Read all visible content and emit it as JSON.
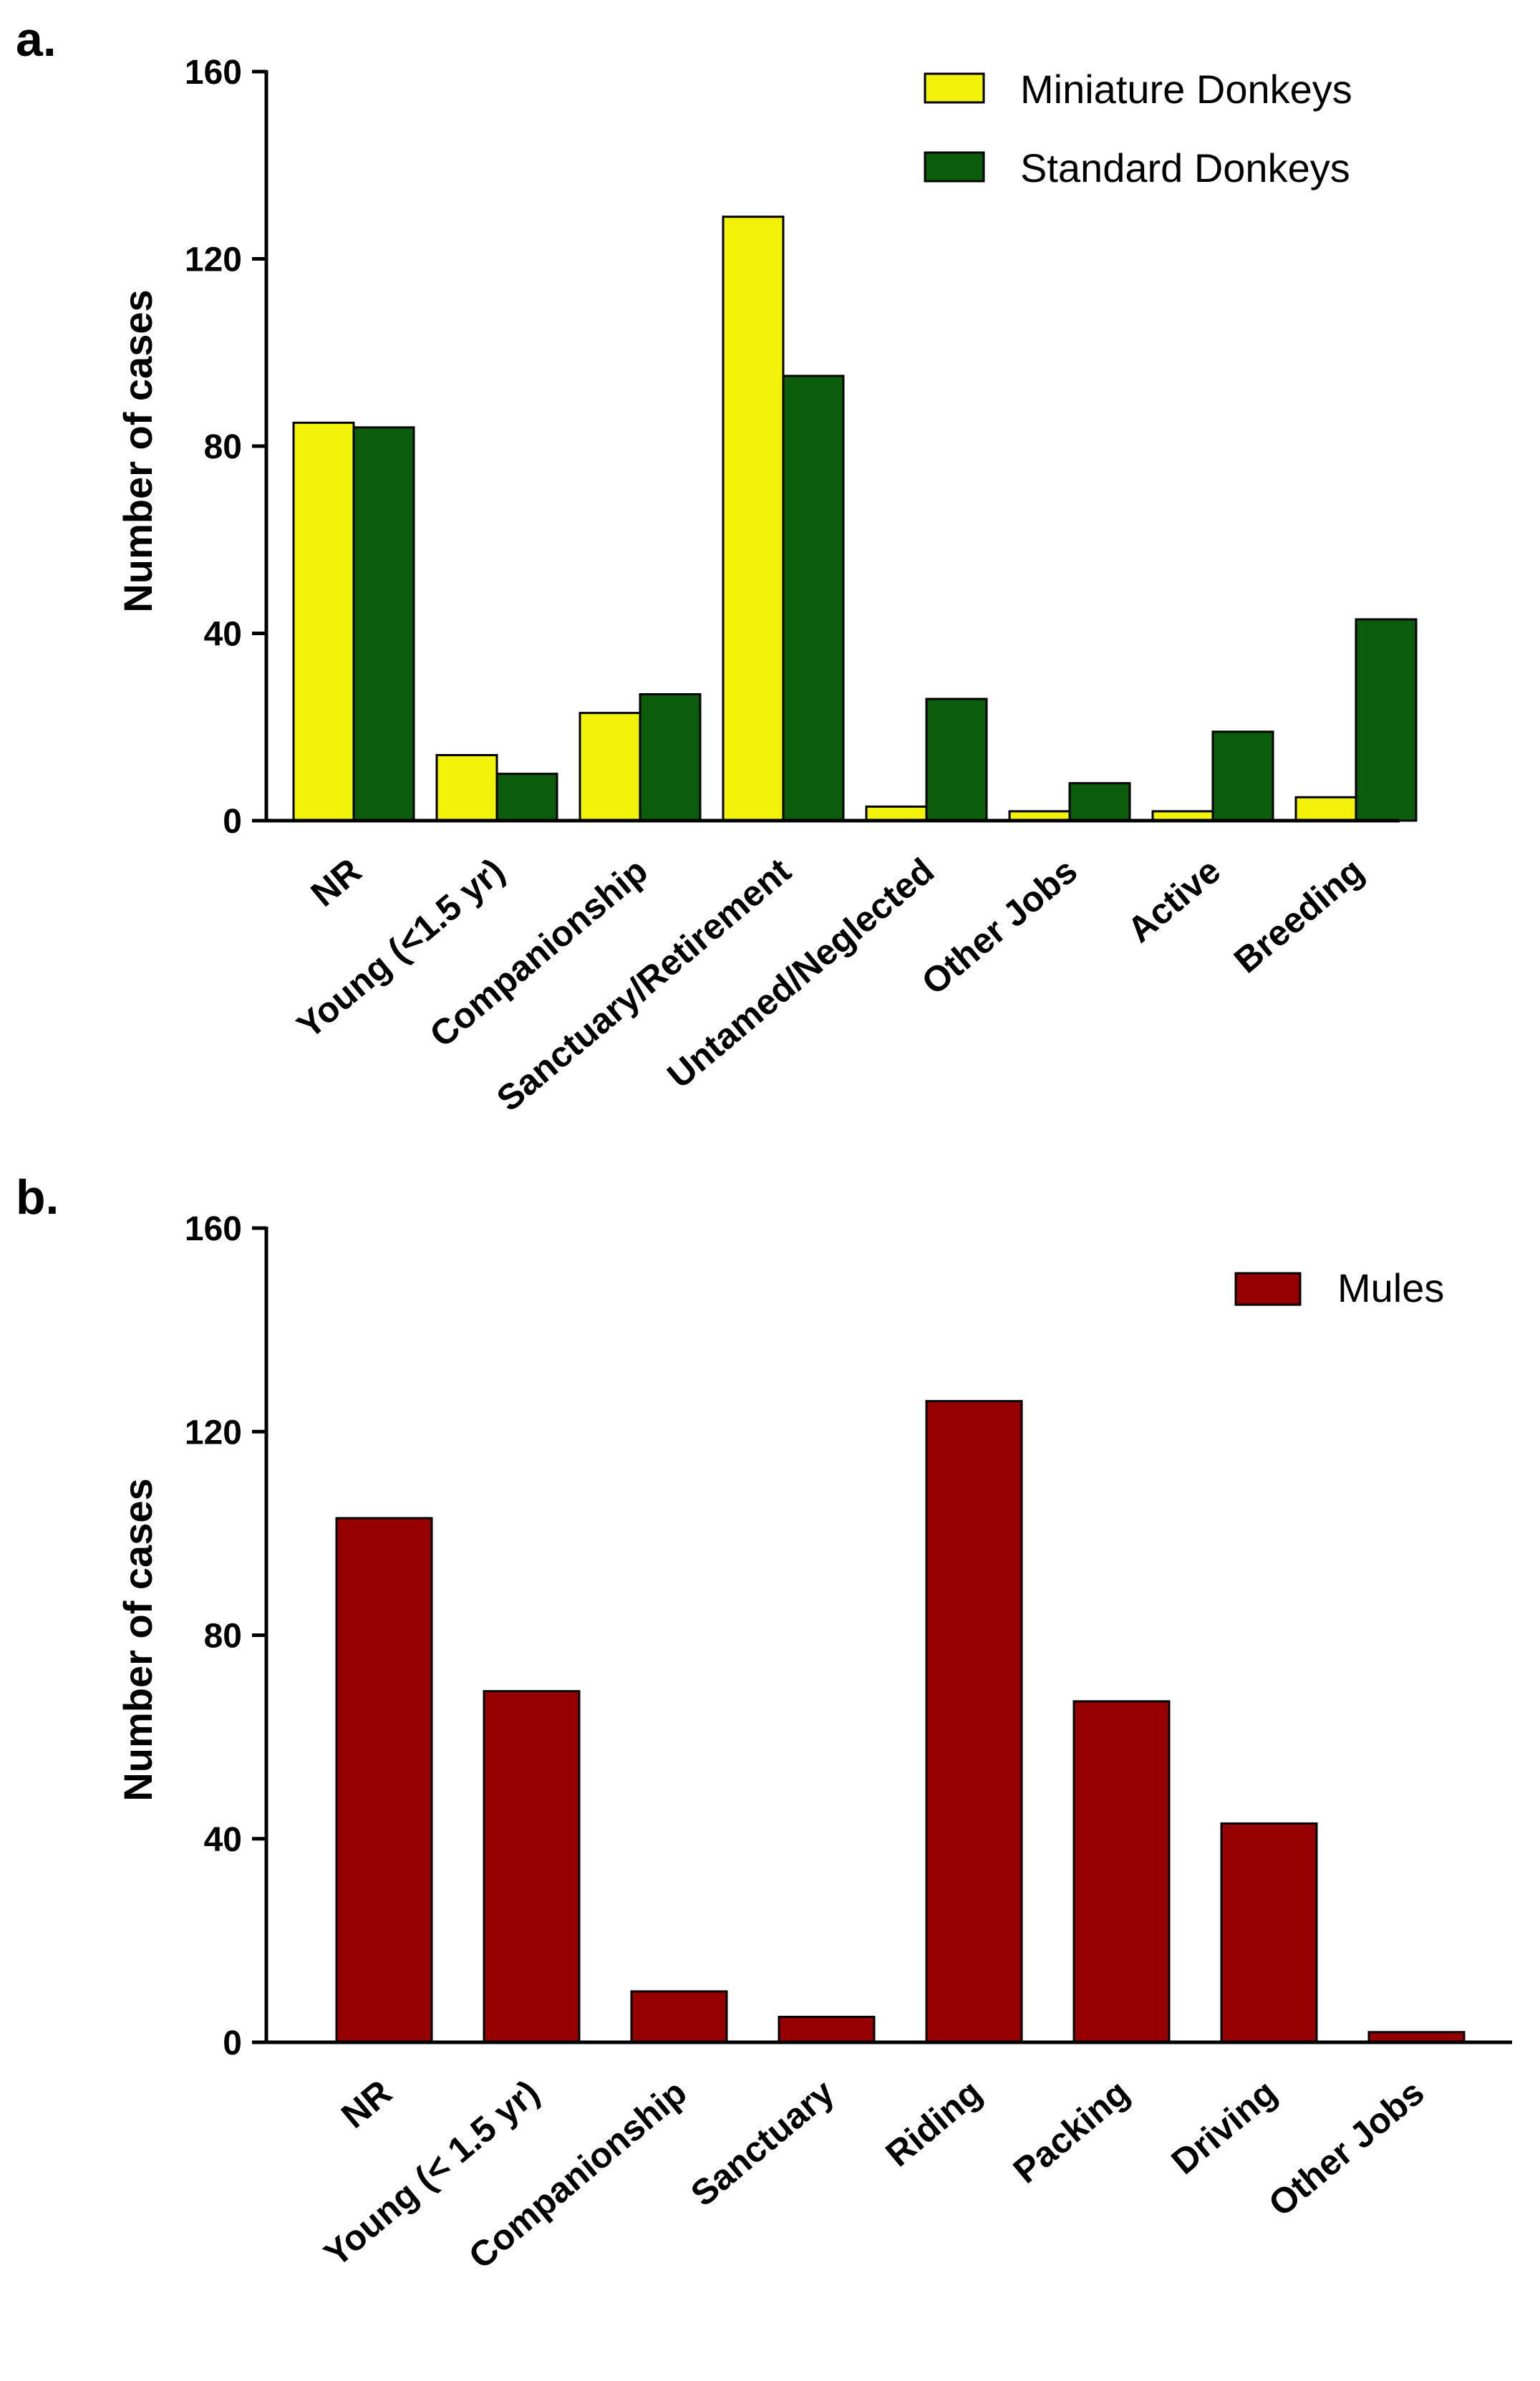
{
  "chart_data": [
    {
      "panel": "a.",
      "type": "bar",
      "title": "",
      "xlabel": "",
      "ylabel": "Number of cases",
      "ylim": [
        0,
        160
      ],
      "yticks": [
        "0",
        "40",
        "80",
        "120",
        "160"
      ],
      "legend_position": "top-right",
      "categories": [
        "NR",
        "Young (<1.5 yr)",
        "Companionship",
        "Sanctuary/Retirement",
        "Untamed/Neglected",
        "Other Jobs",
        "Active",
        "Breeding"
      ],
      "series": [
        {
          "name": "Miniature Donkeys",
          "color": "#f2f20a",
          "values": [
            85,
            14,
            23,
            129,
            3,
            2,
            2,
            5
          ]
        },
        {
          "name": "Standard Donkeys",
          "color": "#0b5c0b",
          "values": [
            84,
            10,
            27,
            95,
            26,
            8,
            19,
            43
          ]
        }
      ]
    },
    {
      "panel": "b.",
      "type": "bar",
      "title": "",
      "xlabel": "",
      "ylabel": "Number of cases",
      "ylim": [
        0,
        160
      ],
      "yticks": [
        "0",
        "40",
        "80",
        "120",
        "160"
      ],
      "legend_position": "top-right",
      "categories": [
        "NR",
        "Young (< 1.5 yr)",
        "Companionship",
        "Sanctuary",
        "Riding",
        "Packing",
        "Driving",
        "Other Jobs"
      ],
      "series": [
        {
          "name": "Mules",
          "color": "#960000",
          "values": [
            103,
            69,
            10,
            5,
            126,
            67,
            43,
            2
          ]
        }
      ]
    }
  ]
}
